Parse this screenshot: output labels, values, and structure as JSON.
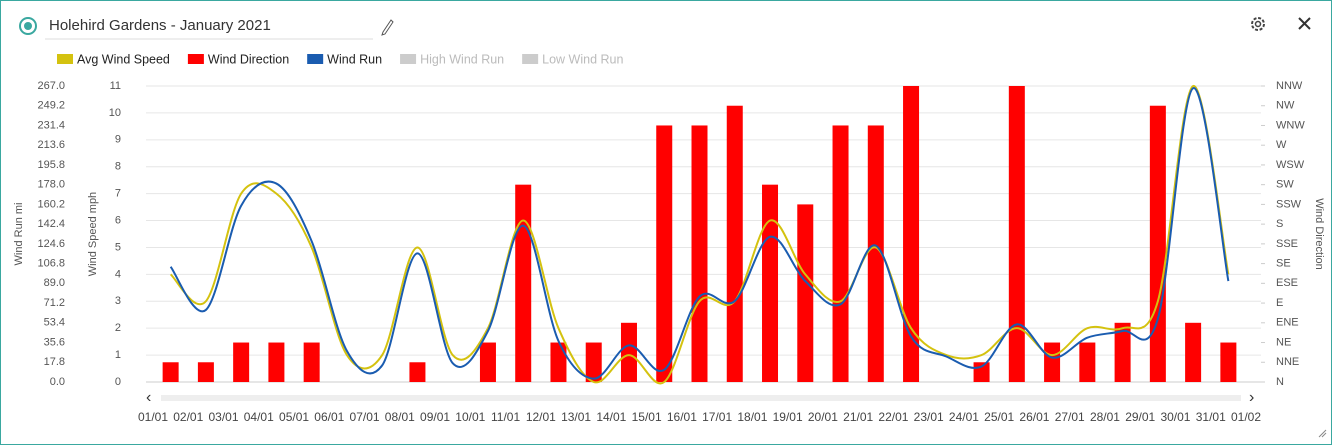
{
  "chart_data": {
    "type": "combo",
    "title": "Holehird Gardens - January 2021",
    "x_labels": [
      "01/01",
      "02/01",
      "03/01",
      "04/01",
      "05/01",
      "06/01",
      "07/01",
      "08/01",
      "09/01",
      "10/01",
      "11/01",
      "12/01",
      "13/01",
      "14/01",
      "15/01",
      "16/01",
      "17/01",
      "18/01",
      "19/01",
      "20/01",
      "21/01",
      "22/01",
      "23/01",
      "24/01",
      "25/01",
      "26/01",
      "27/01",
      "28/01",
      "29/01",
      "30/01",
      "31/01",
      "01/02"
    ],
    "series": [
      {
        "name": "Avg Wind Speed",
        "color": "#d4c20f",
        "kind": "line",
        "axis": "y",
        "values": [
          4,
          3,
          7,
          7,
          5,
          1,
          1,
          5,
          1,
          2,
          6,
          2,
          0,
          1,
          0,
          3,
          3,
          6,
          4,
          3,
          5,
          2,
          1,
          1,
          2,
          1,
          2,
          2,
          3,
          11,
          4
        ]
      },
      {
        "name": "Wind Direction",
        "color": "#ff0000",
        "kind": "bar",
        "axis": "y2",
        "values": [
          1,
          1,
          2,
          2,
          2,
          0,
          0,
          1,
          0,
          2,
          10,
          2,
          2,
          3,
          13,
          13,
          14,
          10,
          9,
          13,
          13,
          15,
          0,
          1,
          15,
          2,
          2,
          3,
          14,
          3,
          2
        ]
      },
      {
        "name": "Wind Run",
        "color": "#1a5cb0",
        "kind": "line",
        "axis": "y3",
        "values": [
          104,
          65,
          159,
          179,
          127,
          28,
          15,
          116,
          17,
          46,
          141,
          37,
          3,
          33,
          11,
          77,
          73,
          131,
          91,
          70,
          123,
          41,
          23,
          14,
          52,
          22,
          40,
          46,
          57,
          265,
          91
        ]
      },
      {
        "name": "High Wind Run",
        "color": "#cccccc",
        "hidden": true
      },
      {
        "name": "Low Wind Run",
        "color": "#cccccc",
        "hidden": true
      }
    ],
    "ylabel": "Wind Speed mph",
    "ylim": [
      0,
      11
    ],
    "yticks": [
      0,
      1,
      2,
      3,
      4,
      5,
      6,
      7,
      8,
      9,
      10,
      11
    ],
    "y3label": "Wind Run mi",
    "y3lim": [
      0,
      267
    ],
    "y3ticks": [
      {
        "value": 0,
        "label": "0.0"
      },
      17.8,
      35.6,
      53.4,
      71.2,
      {
        "value": 89,
        "label": "89.0"
      },
      106.8,
      124.6,
      142.4,
      160.2,
      {
        "value": 178,
        "label": "178.0"
      },
      195.8,
      213.6,
      231.4,
      249.2,
      {
        "value": 267,
        "label": "267.0"
      }
    ],
    "y2label": "Wind Direction",
    "y2lim": [
      0,
      15
    ],
    "y2ticks": [
      {
        "value": 0,
        "label": "N"
      },
      {
        "value": 1,
        "label": "NNE"
      },
      {
        "value": 2,
        "label": "NE"
      },
      {
        "value": 3,
        "label": "ENE"
      },
      {
        "value": 4,
        "label": "E"
      },
      {
        "value": 5,
        "label": "ESE"
      },
      {
        "value": 6,
        "label": "SE"
      },
      {
        "value": 7,
        "label": "SSE"
      },
      {
        "value": 8,
        "label": "S"
      },
      {
        "value": 9,
        "label": "SSW"
      },
      {
        "value": 10,
        "label": "SW"
      },
      {
        "value": 11,
        "label": "WSW"
      },
      {
        "value": 12,
        "label": "W"
      },
      {
        "value": 13,
        "label": "WNW"
      },
      {
        "value": 14,
        "label": "NW"
      },
      {
        "value": 15,
        "label": "NNW"
      }
    ],
    "grid": true
  }
}
